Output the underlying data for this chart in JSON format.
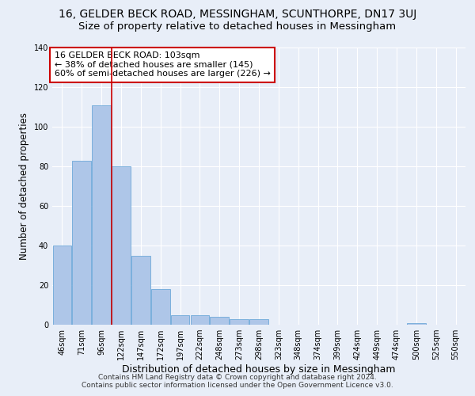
{
  "title": "16, GELDER BECK ROAD, MESSINGHAM, SCUNTHORPE, DN17 3UJ",
  "subtitle": "Size of property relative to detached houses in Messingham",
  "xlabel": "Distribution of detached houses by size in Messingham",
  "ylabel": "Number of detached properties",
  "categories": [
    "46sqm",
    "71sqm",
    "96sqm",
    "122sqm",
    "147sqm",
    "172sqm",
    "197sqm",
    "222sqm",
    "248sqm",
    "273sqm",
    "298sqm",
    "323sqm",
    "348sqm",
    "374sqm",
    "399sqm",
    "424sqm",
    "449sqm",
    "474sqm",
    "500sqm",
    "525sqm",
    "550sqm"
  ],
  "values": [
    40,
    83,
    111,
    80,
    35,
    18,
    5,
    5,
    4,
    3,
    3,
    0,
    0,
    0,
    0,
    0,
    0,
    0,
    1,
    0,
    0
  ],
  "bar_color": "#aec6e8",
  "bar_edge_color": "#5a9fd4",
  "ylim": [
    0,
    140
  ],
  "yticks": [
    0,
    20,
    40,
    60,
    80,
    100,
    120,
    140
  ],
  "vline_index": 2,
  "annotation_title": "16 GELDER BECK ROAD: 103sqm",
  "annotation_line1": "← 38% of detached houses are smaller (145)",
  "annotation_line2": "60% of semi-detached houses are larger (226) →",
  "annotation_box_color": "#ffffff",
  "annotation_box_edge": "#cc0000",
  "vline_color": "#cc0000",
  "footer1": "Contains HM Land Registry data © Crown copyright and database right 2024.",
  "footer2": "Contains public sector information licensed under the Open Government Licence v3.0.",
  "bg_color": "#e8eef8",
  "fig_bg_color": "#e8eef8",
  "grid_color": "#ffffff",
  "title_fontsize": 10,
  "subtitle_fontsize": 9.5,
  "xlabel_fontsize": 9,
  "ylabel_fontsize": 8.5,
  "tick_fontsize": 7,
  "annotation_fontsize": 8,
  "footer_fontsize": 6.5
}
